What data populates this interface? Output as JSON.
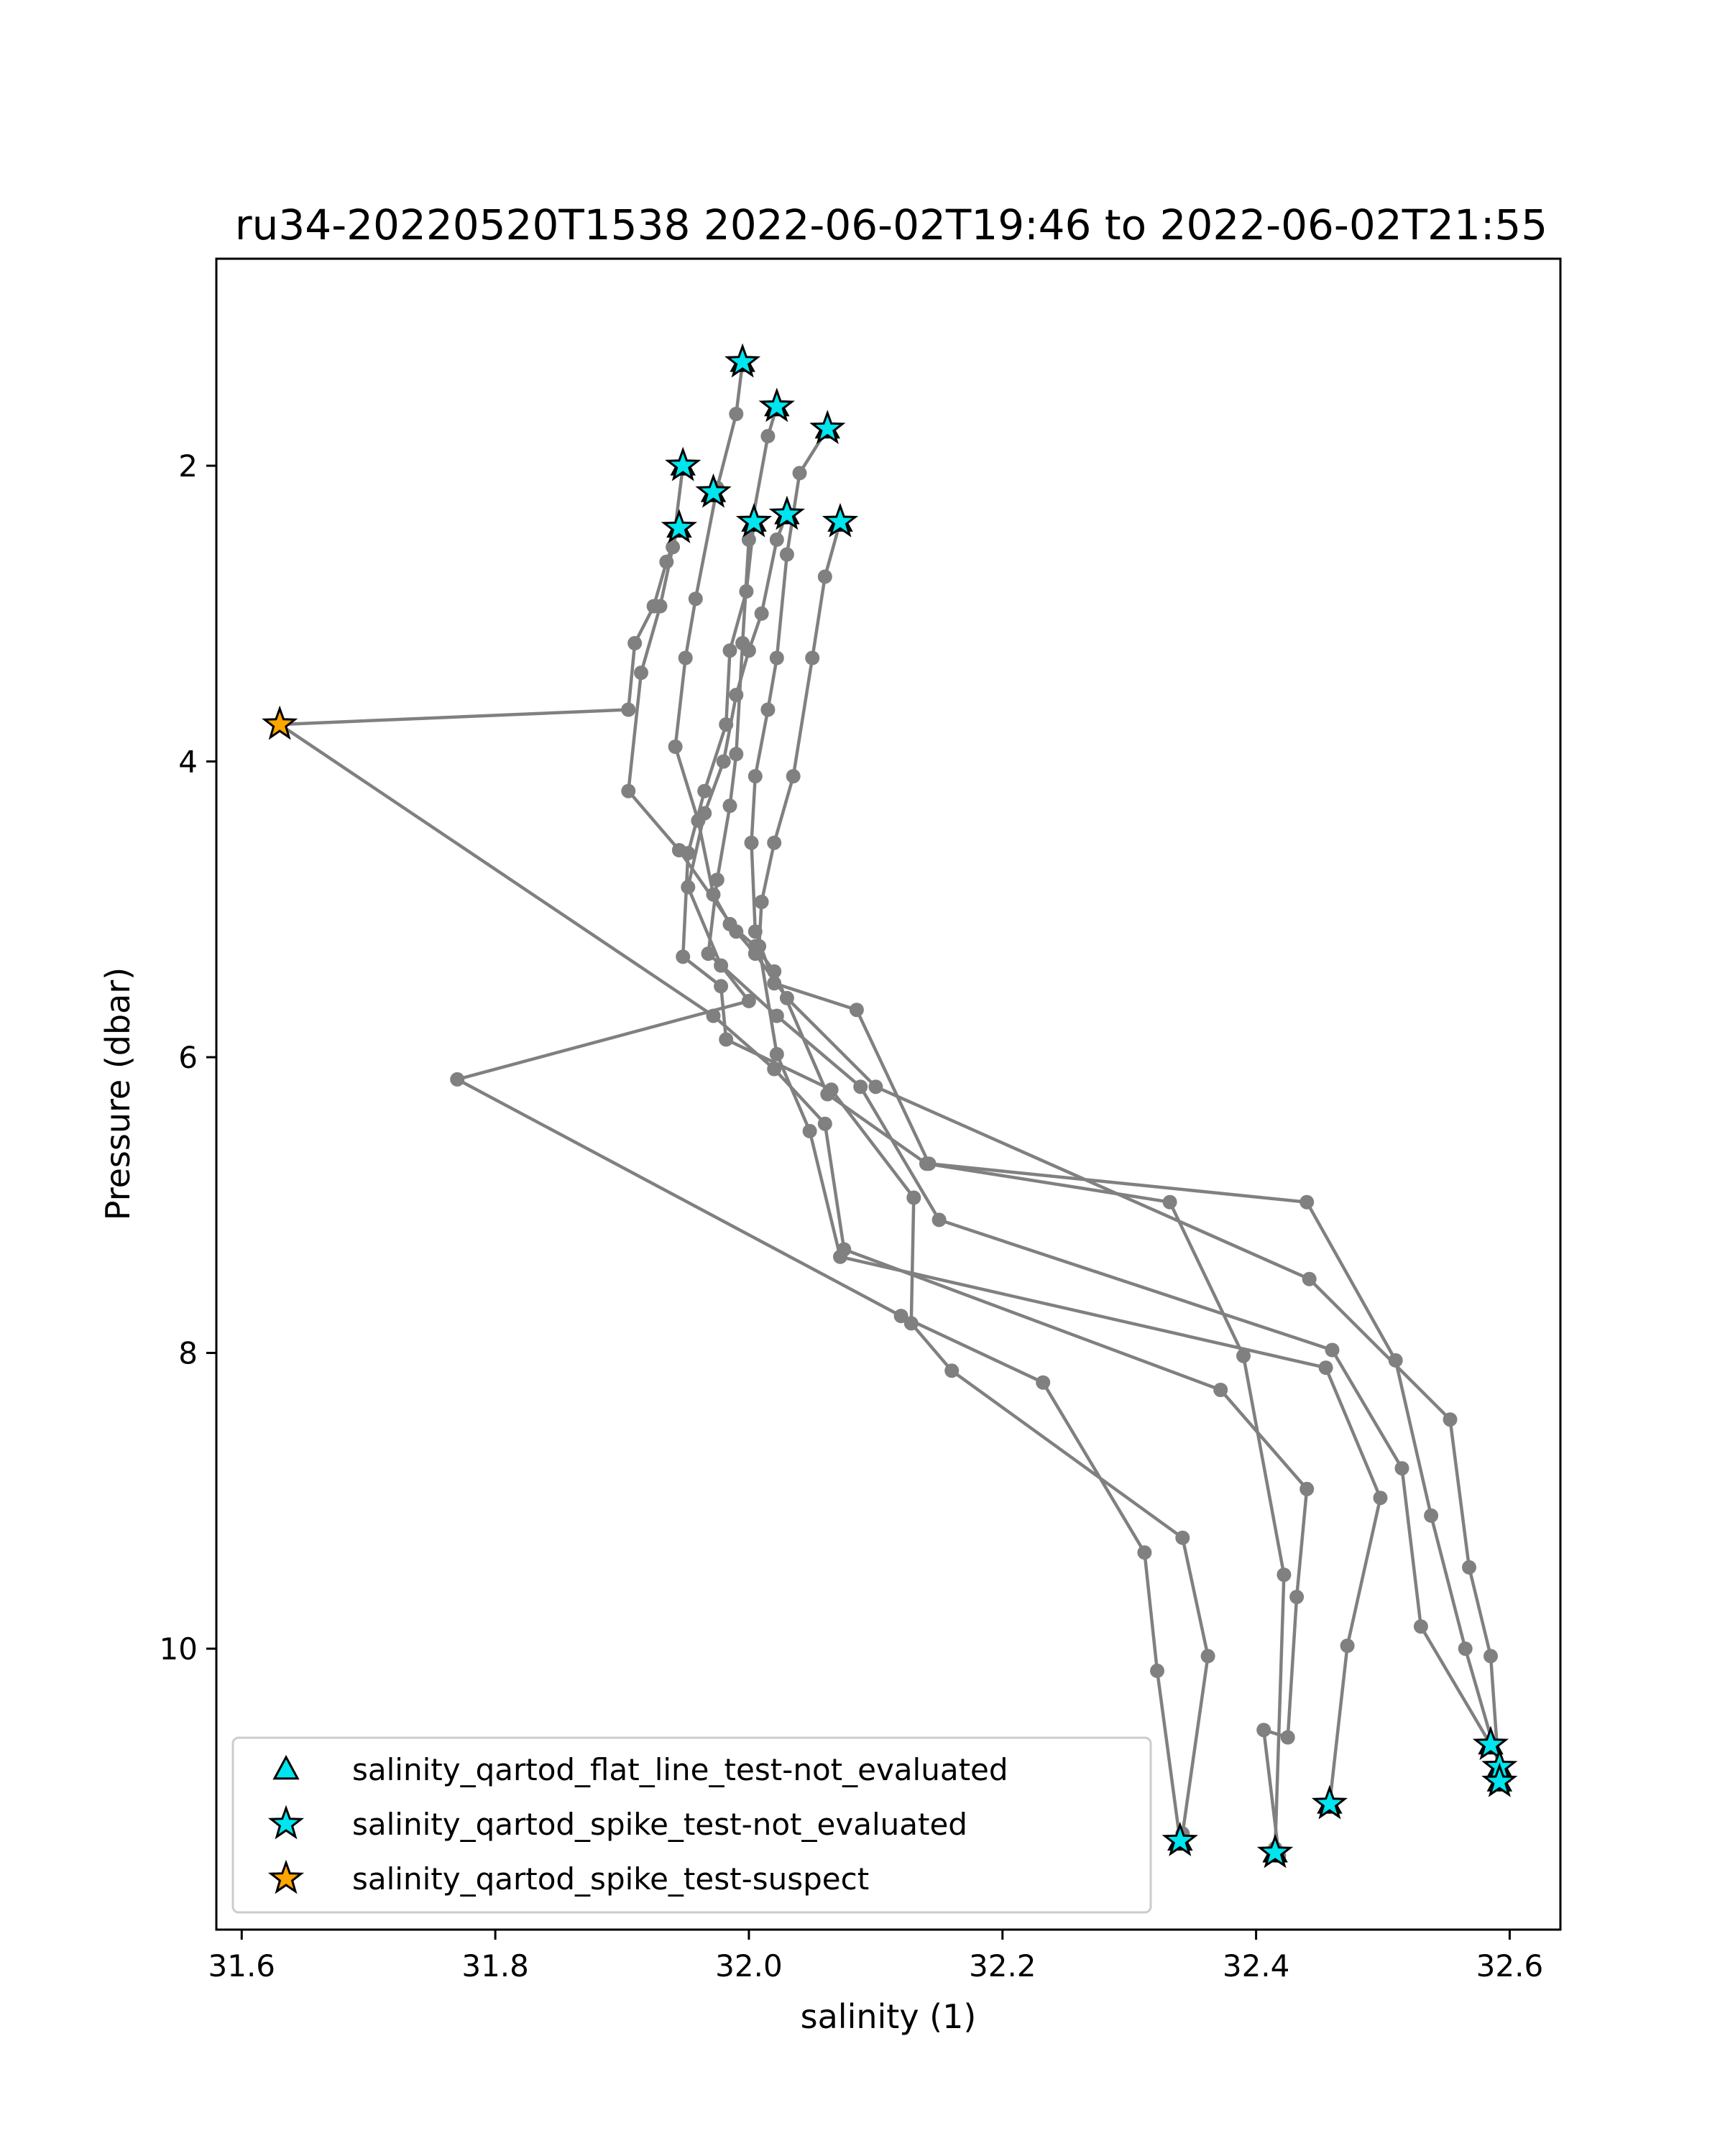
{
  "chart_data": {
    "type": "scatter",
    "title": "ru34-20220520T1538 2022-06-02T19:46 to 2022-06-02T21:55",
    "xlabel": "salinity (1)",
    "ylabel": "Pressure (dbar)",
    "xlim": [
      31.58,
      32.64
    ],
    "ylim": [
      11.9,
      0.6
    ],
    "y_inverted": true,
    "grid": false,
    "xticks": [
      31.6,
      31.8,
      32.0,
      32.2,
      32.4,
      32.6
    ],
    "xtick_labels": [
      "31.6",
      "31.8",
      "32.0",
      "32.2",
      "32.4",
      "32.6"
    ],
    "yticks": [
      2,
      4,
      6,
      8,
      10
    ],
    "ytick_labels": [
      "2",
      "4",
      "6",
      "8",
      "10"
    ],
    "line_color": "#808080",
    "legend_position": "lower-left",
    "profiles": [
      {
        "points": [
          [
            31.995,
            1.3
          ],
          [
            31.99,
            1.65
          ],
          [
            31.975,
            2.15
          ],
          [
            31.958,
            2.9
          ],
          [
            31.95,
            3.3
          ],
          [
            31.942,
            3.9
          ],
          [
            31.96,
            4.4
          ],
          [
            31.972,
            4.9
          ],
          [
            31.985,
            5.1
          ],
          [
            32.005,
            5.25
          ],
          [
            32.02,
            5.42
          ],
          [
            32.062,
            6.25
          ],
          [
            32.14,
            6.72
          ],
          [
            32.332,
            6.98
          ],
          [
            32.39,
            8.02
          ],
          [
            32.422,
            9.5
          ],
          [
            32.415,
            11.35
          ]
        ]
      },
      {
        "points": [
          [
            32.022,
            1.6
          ],
          [
            32.015,
            1.8
          ],
          [
            32.0,
            2.5
          ],
          [
            31.995,
            3.2
          ],
          [
            31.99,
            3.95
          ],
          [
            31.985,
            4.3
          ],
          [
            31.975,
            4.8
          ],
          [
            31.968,
            5.3
          ],
          [
            32.022,
            5.72
          ],
          [
            32.088,
            6.2
          ],
          [
            32.15,
            7.1
          ],
          [
            32.46,
            7.98
          ],
          [
            32.515,
            8.78
          ],
          [
            32.53,
            9.85
          ],
          [
            32.585,
            10.65
          ]
        ]
      },
      {
        "points": [
          [
            32.062,
            1.75
          ],
          [
            32.04,
            2.05
          ],
          [
            32.03,
            2.6
          ],
          [
            32.022,
            3.3
          ],
          [
            32.015,
            3.65
          ],
          [
            32.005,
            4.1
          ],
          [
            32.002,
            4.55
          ],
          [
            32.005,
            5.15
          ],
          [
            32.02,
            5.5
          ],
          [
            32.085,
            5.68
          ],
          [
            32.142,
            6.72
          ],
          [
            32.44,
            6.98
          ],
          [
            32.51,
            8.05
          ],
          [
            32.538,
            9.1
          ],
          [
            32.565,
            10.0
          ],
          [
            32.592,
            10.8
          ]
        ]
      },
      {
        "points": [
          [
            31.948,
            2.0
          ],
          [
            31.94,
            2.55
          ],
          [
            31.93,
            2.95
          ],
          [
            31.915,
            3.4
          ],
          [
            31.905,
            4.2
          ],
          [
            31.945,
            4.6
          ],
          [
            31.99,
            5.15
          ],
          [
            32.005,
            5.3
          ],
          [
            32.03,
            5.6
          ],
          [
            32.1,
            6.2
          ],
          [
            32.442,
            7.5
          ],
          [
            32.553,
            8.45
          ],
          [
            32.568,
            9.45
          ],
          [
            32.585,
            10.05
          ],
          [
            32.592,
            10.9
          ]
        ]
      },
      {
        "points": [
          [
            32.03,
            2.32
          ],
          [
            32.022,
            2.5
          ],
          [
            32.01,
            3.0
          ],
          [
            32.0,
            3.25
          ],
          [
            31.99,
            3.55
          ],
          [
            31.98,
            4.0
          ],
          [
            31.965,
            4.35
          ],
          [
            31.952,
            4.85
          ],
          [
            31.978,
            5.38
          ],
          [
            32.0,
            5.62
          ],
          [
            31.77,
            6.15
          ],
          [
            32.12,
            7.75
          ],
          [
            32.232,
            8.2
          ],
          [
            32.312,
            9.35
          ],
          [
            32.322,
            10.15
          ],
          [
            32.34,
            11.3
          ]
        ]
      },
      {
        "points": [
          [
            32.072,
            2.38
          ],
          [
            32.06,
            2.75
          ],
          [
            32.05,
            3.3
          ],
          [
            32.035,
            4.1
          ],
          [
            32.02,
            4.55
          ],
          [
            32.01,
            4.95
          ],
          [
            32.008,
            5.25
          ],
          [
            32.022,
            5.98
          ],
          [
            32.048,
            6.5
          ],
          [
            32.072,
            7.35
          ],
          [
            32.455,
            8.1
          ],
          [
            32.498,
            8.98
          ],
          [
            32.472,
            9.98
          ],
          [
            32.458,
            11.05
          ]
        ]
      },
      {
        "points": [
          [
            32.004,
            2.38
          ],
          [
            31.998,
            2.85
          ],
          [
            31.985,
            3.25
          ],
          [
            31.982,
            3.75
          ],
          [
            31.965,
            4.2
          ],
          [
            31.952,
            4.62
          ],
          [
            31.948,
            5.32
          ],
          [
            31.978,
            5.52
          ],
          [
            31.982,
            5.88
          ],
          [
            32.065,
            6.22
          ],
          [
            32.13,
            6.95
          ],
          [
            32.128,
            7.8
          ],
          [
            32.16,
            8.12
          ],
          [
            32.342,
            9.25
          ],
          [
            32.362,
            10.05
          ],
          [
            32.342,
            11.25
          ]
        ]
      },
      {
        "points": [
          [
            31.945,
            2.42
          ],
          [
            31.935,
            2.65
          ],
          [
            31.925,
            2.95
          ],
          [
            31.91,
            3.2
          ],
          [
            31.905,
            3.65
          ],
          [
            31.63,
            3.75
          ],
          [
            31.972,
            5.72
          ],
          [
            32.02,
            6.08
          ],
          [
            32.06,
            6.45
          ],
          [
            32.075,
            7.3
          ],
          [
            32.372,
            8.25
          ],
          [
            32.44,
            8.92
          ],
          [
            32.432,
            9.65
          ],
          [
            32.425,
            10.6
          ],
          [
            32.406,
            10.55
          ],
          [
            32.418,
            11.4
          ]
        ]
      }
    ],
    "markers": {
      "spike_not_evaluated": [
        [
          31.995,
          1.3
        ],
        [
          32.022,
          1.6
        ],
        [
          32.062,
          1.75
        ],
        [
          31.948,
          2.0
        ],
        [
          31.972,
          2.18
        ],
        [
          32.004,
          2.38
        ],
        [
          32.03,
          2.33
        ],
        [
          32.072,
          2.38
        ],
        [
          31.945,
          2.42
        ],
        [
          32.34,
          11.3
        ],
        [
          32.415,
          11.38
        ],
        [
          32.458,
          11.05
        ],
        [
          32.585,
          10.65
        ],
        [
          32.592,
          10.8
        ],
        [
          32.592,
          10.9
        ]
      ],
      "spike_suspect": [
        [
          31.63,
          3.75
        ]
      ]
    },
    "legend": [
      {
        "label": "salinity_qartod_flat_line_test-not_evaluated",
        "marker": "triangle",
        "color": "#00e5ee"
      },
      {
        "label": "salinity_qartod_spike_test-not_evaluated",
        "marker": "star",
        "color": "#00e5ee"
      },
      {
        "label": "salinity_qartod_spike_test-suspect",
        "marker": "star",
        "color": "#ffa500"
      }
    ]
  }
}
